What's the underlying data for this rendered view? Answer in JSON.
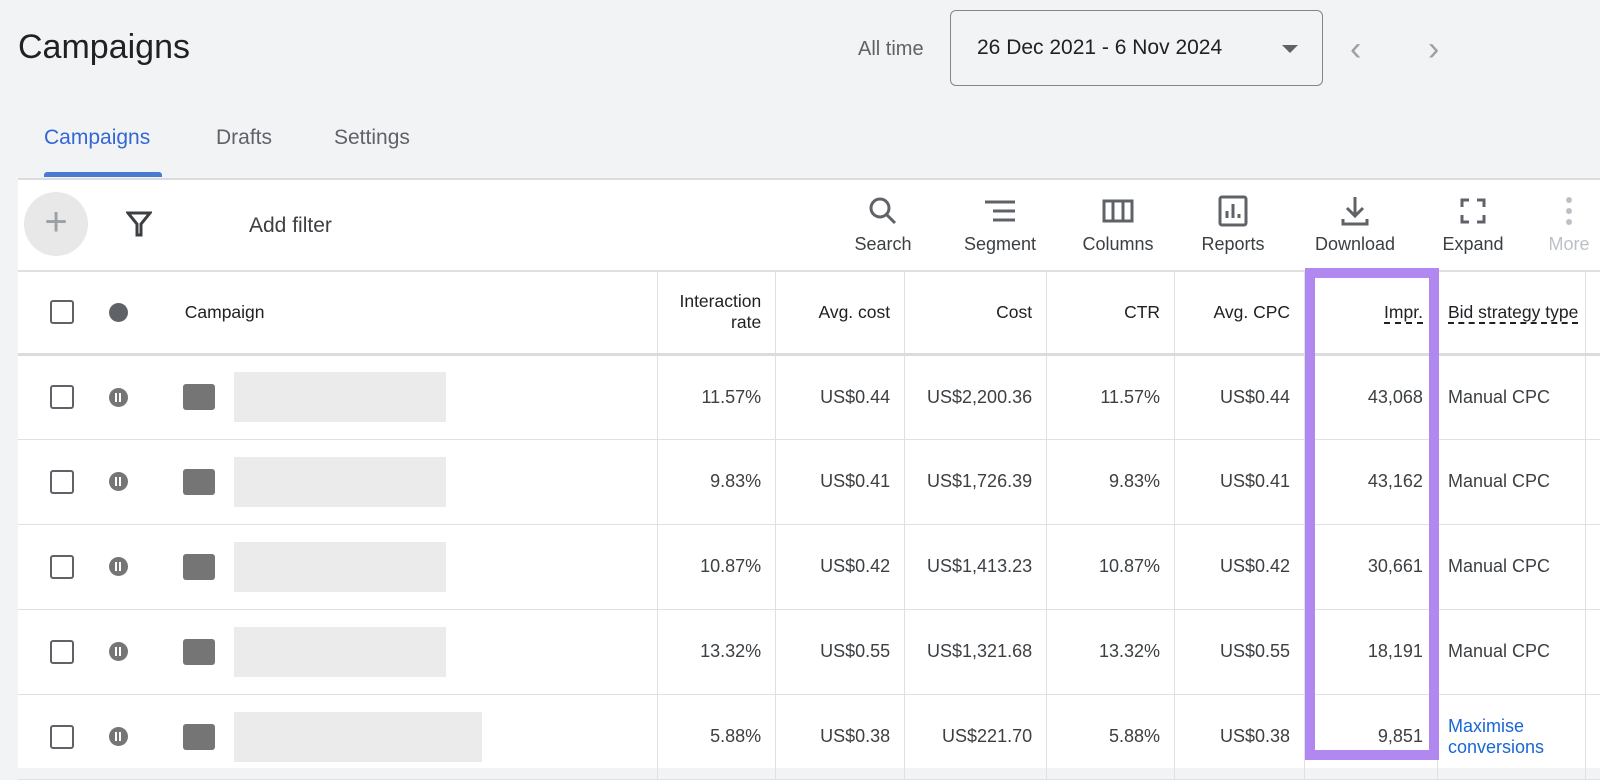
{
  "header": {
    "title": "Campaigns",
    "range_label": "All time",
    "date_range": "26 Dec 2021 - 6 Nov 2024"
  },
  "tabs": [
    {
      "label": "Campaigns",
      "active": true
    },
    {
      "label": "Drafts"
    },
    {
      "label": "Settings"
    }
  ],
  "toolbar": {
    "add_filter": "Add filter",
    "tools": [
      "Search",
      "Segment",
      "Columns",
      "Reports",
      "Download",
      "Expand",
      "More"
    ]
  },
  "table": {
    "columns": [
      "Campaign",
      "Interaction rate",
      "Avg. cost",
      "Cost",
      "CTR",
      "Avg. CPC",
      "Impr.",
      "Bid strategy type"
    ],
    "rows": [
      {
        "status": "paused",
        "interaction_rate": "11.57%",
        "avg_cost": "US$0.44",
        "cost": "US$2,200.36",
        "ctr": "11.57%",
        "avg_cpc": "US$0.44",
        "impr": "43,068",
        "bid": "Manual CPC"
      },
      {
        "status": "paused",
        "interaction_rate": "9.83%",
        "avg_cost": "US$0.41",
        "cost": "US$1,726.39",
        "ctr": "9.83%",
        "avg_cpc": "US$0.41",
        "impr": "43,162",
        "bid": "Manual CPC"
      },
      {
        "status": "paused",
        "interaction_rate": "10.87%",
        "avg_cost": "US$0.42",
        "cost": "US$1,413.23",
        "ctr": "10.87%",
        "avg_cpc": "US$0.42",
        "impr": "30,661",
        "bid": "Manual CPC"
      },
      {
        "status": "paused",
        "interaction_rate": "13.32%",
        "avg_cost": "US$0.55",
        "cost": "US$1,321.68",
        "ctr": "13.32%",
        "avg_cpc": "US$0.55",
        "impr": "18,191",
        "bid": "Manual CPC"
      },
      {
        "status": "paused",
        "interaction_rate": "5.88%",
        "avg_cost": "US$0.38",
        "cost": "US$221.70",
        "ctr": "5.88%",
        "avg_cpc": "US$0.38",
        "impr": "9,851",
        "bid": "Maximise conversions"
      }
    ]
  },
  "colors": {
    "highlight": "#b088f0",
    "accent": "#3367d6",
    "link": "#1967d2"
  }
}
